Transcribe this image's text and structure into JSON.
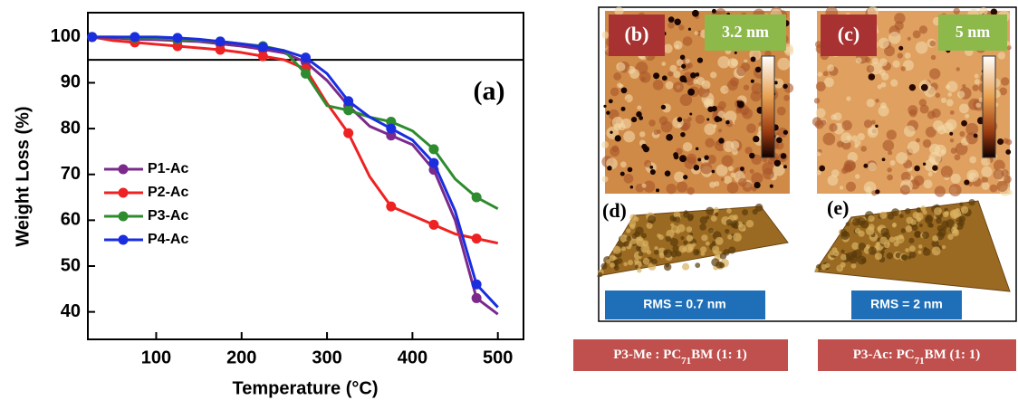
{
  "chart_data": {
    "type": "line",
    "panel_label": "(a)",
    "xlabel": "Temperature (°C)",
    "ylabel": "Weight Loss (%)",
    "x": [
      25,
      50,
      75,
      100,
      125,
      150,
      175,
      200,
      225,
      250,
      275,
      300,
      325,
      350,
      375,
      400,
      425,
      450,
      475,
      500
    ],
    "series": [
      {
        "name": "P1-Ac",
        "color": "#7b2a8c",
        "values": [
          100,
          99.8,
          99.5,
          99.4,
          99.2,
          99,
          98.5,
          98,
          97.3,
          96.5,
          94.5,
          90.5,
          85,
          80.5,
          78.5,
          76.5,
          71,
          60,
          43,
          39.5
        ]
      },
      {
        "name": "P2-Ac",
        "color": "#ee2222",
        "values": [
          100,
          99.2,
          98.8,
          98.4,
          98,
          97.6,
          97.2,
          96.6,
          95.8,
          95,
          93,
          85.5,
          79,
          69.5,
          63,
          61,
          59,
          57,
          56,
          55
        ]
      },
      {
        "name": "P3-Ac",
        "color": "#2e8b2e",
        "values": [
          100,
          100,
          99.8,
          99.7,
          99.5,
          99.3,
          99,
          98.5,
          98,
          97,
          92,
          85,
          84,
          82.5,
          81.5,
          79.5,
          75.5,
          69,
          65,
          62.5
        ]
      },
      {
        "name": "P4-Ac",
        "color": "#1a2ee0",
        "values": [
          100,
          100,
          100,
          100,
          99.8,
          99.5,
          99,
          98.5,
          97.8,
          97,
          95.5,
          92,
          86,
          82.5,
          80,
          77.5,
          72.5,
          62,
          46,
          41
        ]
      }
    ],
    "xlim": [
      20,
      530
    ],
    "xticks": [
      100,
      200,
      300,
      400,
      500
    ],
    "ylim": [
      34,
      105.3
    ],
    "yticks": [
      40,
      50,
      60,
      70,
      80,
      90,
      100
    ],
    "hline": 95,
    "legend": "left"
  },
  "panels": {
    "b": {
      "label": "(b)",
      "height": "3.2 nm"
    },
    "c": {
      "label": "(c)",
      "height": "5 nm"
    },
    "d": {
      "label": "(d)",
      "rms": "RMS = 0.7 nm"
    },
    "e": {
      "label": "(e)",
      "rms": "RMS = 2 nm"
    },
    "captions": [
      {
        "pre": "P3-Me : PC",
        "sub": "71",
        "post": "BM (1: 1)"
      },
      {
        "pre": "P3-Ac: PC",
        "sub": "71",
        "post": "BM (1: 1)"
      }
    ]
  }
}
